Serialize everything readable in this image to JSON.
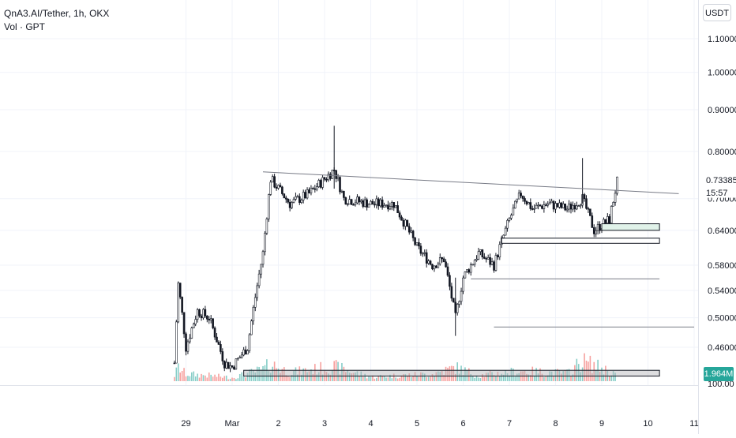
{
  "legend": {
    "symbol_line": "QnA3.AI/Tether, 1h, OKX",
    "volume_line": "Vol · GPT"
  },
  "currency_button": "USDT",
  "last_price_label": "0.73385",
  "countdown_label": "15:57",
  "volume_label": "1.964M",
  "volume_axis_tick": "100.00",
  "colors": {
    "up": "#26a69a",
    "down": "#ef5350",
    "candle": "#131722",
    "zone_fill": "#e0f2e9",
    "grid": "#f0f3fa"
  },
  "chart_data": {
    "type": "candlestick",
    "title": "QnA3.AI/Tether, 1h, OKX",
    "ylabel": "USDT",
    "y_scale": "log",
    "y_ticks": [
      "1.10000",
      "1.00000",
      "0.90000",
      "0.80000",
      "0.70000",
      "0.64000",
      "0.58000",
      "0.54000",
      "0.50000",
      "0.46000"
    ],
    "x_ticks": [
      "29",
      "Mar",
      "2",
      "3",
      "4",
      "5",
      "6",
      "7",
      "8",
      "9",
      "10",
      "11"
    ],
    "ylim": [
      0.42,
      1.15
    ],
    "grid": true,
    "last_price": 0.73385,
    "candles_description": "hourly OHLC from 28 Feb to 9 Mar",
    "price_path": [
      {
        "date": "Feb 28 18:00",
        "price": 0.44
      },
      {
        "date": "Feb 28 20:00",
        "price": 0.55
      },
      {
        "date": "Feb 29 00:00",
        "price": 0.46
      },
      {
        "date": "Feb 29 06:00",
        "price": 0.51
      },
      {
        "date": "Feb 29 12:00",
        "price": 0.5
      },
      {
        "date": "Feb 29 20:00",
        "price": 0.44
      },
      {
        "date": "Mar 1 00:00",
        "price": 0.435
      },
      {
        "date": "Mar 1 08:00",
        "price": 0.46
      },
      {
        "date": "Mar 1 16:00",
        "price": 0.6
      },
      {
        "date": "Mar 1 20:00",
        "price": 0.74
      },
      {
        "date": "Mar 2 06:00",
        "price": 0.69
      },
      {
        "date": "Mar 2 16:00",
        "price": 0.71
      },
      {
        "date": "Mar 3 00:00",
        "price": 0.74
      },
      {
        "date": "Mar 3 05:00",
        "price": 0.76
      },
      {
        "date": "Mar 3 10:00",
        "price": 0.7
      },
      {
        "date": "Mar 4 00:00",
        "price": 0.69
      },
      {
        "date": "Mar 4 12:00",
        "price": 0.69
      },
      {
        "date": "Mar 4 18:00",
        "price": 0.65
      },
      {
        "date": "Mar 5 00:00",
        "price": 0.61
      },
      {
        "date": "Mar 5 08:00",
        "price": 0.58
      },
      {
        "date": "Mar 5 14:00",
        "price": 0.59
      },
      {
        "date": "Mar 5 20:00",
        "price": 0.5
      },
      {
        "date": "Mar 6 00:00",
        "price": 0.56
      },
      {
        "date": "Mar 6 08:00",
        "price": 0.6
      },
      {
        "date": "Mar 6 16:00",
        "price": 0.58
      },
      {
        "date": "Mar 7 00:00",
        "price": 0.66
      },
      {
        "date": "Mar 7 06:00",
        "price": 0.71
      },
      {
        "date": "Mar 7 12:00",
        "price": 0.68
      },
      {
        "date": "Mar 7 20:00",
        "price": 0.69
      },
      {
        "date": "Mar 8 06:00",
        "price": 0.68
      },
      {
        "date": "Mar 8 14:00",
        "price": 0.7
      },
      {
        "date": "Mar 8 20:00",
        "price": 0.64
      },
      {
        "date": "Mar 9 04:00",
        "price": 0.66
      },
      {
        "date": "Mar 9 08:00",
        "price": 0.734
      }
    ],
    "volume_path": [
      {
        "date": "Feb 28 18:00",
        "volume": 0.8
      },
      {
        "date": "Feb 28 20:00",
        "volume": 1.9
      },
      {
        "date": "Feb 29 00:00",
        "volume": 1.0
      },
      {
        "date": "Feb 29 12:00",
        "volume": 0.8
      },
      {
        "date": "Mar 1 00:00",
        "volume": 0.5
      },
      {
        "date": "Mar 1 16:00",
        "volume": 1.6
      },
      {
        "date": "Mar 1 20:00",
        "volume": 2.4
      },
      {
        "date": "Mar 2 06:00",
        "volume": 1.2
      },
      {
        "date": "Mar 3 05:00",
        "volume": 2.0
      },
      {
        "date": "Mar 4 00:00",
        "volume": 0.6
      },
      {
        "date": "Mar 5 08:00",
        "volume": 1.0
      },
      {
        "date": "Mar 5 20:00",
        "volume": 1.9
      },
      {
        "date": "Mar 6 08:00",
        "volume": 0.8
      },
      {
        "date": "Mar 7 06:00",
        "volume": 1.4
      },
      {
        "date": "Mar 8 06:00",
        "volume": 1.1
      },
      {
        "date": "Mar 8 14:00",
        "volume": 2.8
      },
      {
        "date": "Mar 9 08:00",
        "volume": 1.0
      }
    ],
    "annotations": [
      {
        "type": "trendline",
        "from": {
          "date": "Mar 1 16:00",
          "price": 0.755
        },
        "to": {
          "date": "Mar 10 16:00",
          "price": 0.71
        }
      },
      {
        "type": "zone",
        "from_date": "Mar 9 00:00",
        "to_date": "Mar 10 06:00",
        "price_top": 0.652,
        "price_bottom": 0.64,
        "style": "green"
      },
      {
        "type": "zone",
        "from_date": "Mar 6 20:00",
        "to_date": "Mar 10 06:00",
        "price_top": 0.626,
        "price_bottom": 0.617,
        "style": "white"
      },
      {
        "type": "zone",
        "from_date": "Mar 1 06:00",
        "to_date": "Mar 10 06:00",
        "price_top": 0.431,
        "price_bottom": 0.424,
        "style": "grey"
      },
      {
        "type": "hline",
        "from_date": "Mar 6 04:00",
        "to_date": "Mar 10 06:00",
        "price": 0.558
      },
      {
        "type": "hline",
        "from_date": "Mar 6 16:00",
        "to_date": "Mar 11 00:00",
        "price": 0.487
      }
    ]
  }
}
